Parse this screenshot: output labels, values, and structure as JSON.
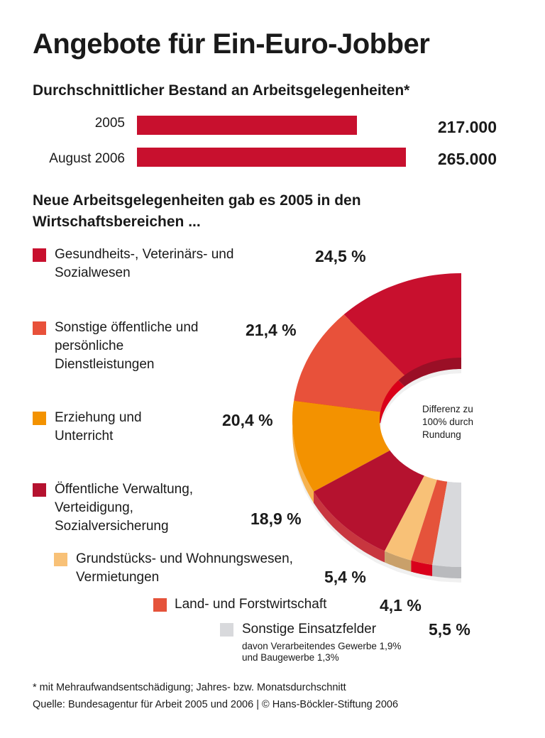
{
  "title": "Angebote für Ein-Euro-Jobber",
  "chart_data": [
    {
      "type": "bar",
      "orientation": "horizontal",
      "title": "Durchschnittlicher Bestand an Arbeitsgelegenheiten*",
      "categories": [
        "2005",
        "August 2006"
      ],
      "values": [
        217000,
        265000
      ],
      "value_labels": [
        "217.000",
        "265.000"
      ],
      "color": "#c8102e"
    },
    {
      "type": "pie",
      "style": "3d half-donut",
      "title": "Neue Arbeitsgelegenheiten gab es 2005 in den Wirtschaftsbereichen ...",
      "slices": [
        {
          "label": "Gesundheits-, Veterinärs- und Sozialwesen",
          "value": 24.5,
          "value_label": "24,5 %",
          "color": "#c8102e",
          "side": "#9a0f26"
        },
        {
          "label": "Sonstige öffentliche und persönliche Dienstleistungen",
          "value": 21.4,
          "value_label": "21,4 %",
          "color": "#e8513a",
          "side": "#d90019"
        },
        {
          "label": "Erziehung und Unterricht",
          "value": 20.4,
          "value_label": "20,4 %",
          "color": "#f39200",
          "side": "#f6b24f"
        },
        {
          "label": "Öffentliche Verwaltung, Verteidigung, Sozialversicherung",
          "value": 18.9,
          "value_label": "18,9 %",
          "color": "#b5122f",
          "side": "#c8363f"
        },
        {
          "label": "Grundstücks- und Wohnungswesen, Vermietungen",
          "value": 5.4,
          "value_label": "5,4 %",
          "color": "#f8c177",
          "side": "#c9a06a"
        },
        {
          "label": "Land- und Forstwirtschaft",
          "value": 4.1,
          "value_label": "4,1 %",
          "color": "#e5533b",
          "side": "#d9001b"
        },
        {
          "label": "Sonstige Einsatzfelder",
          "value": 5.5,
          "value_label": "5,5 %",
          "color": "#d8d9dc",
          "side": "#b9babd"
        }
      ],
      "sub_note": [
        "davon Verarbeitendes Gewerbe 1,9%",
        "und Baugewerbe 1,3%"
      ],
      "note": [
        "Differenz zu",
        "100% durch",
        "Rundung"
      ]
    }
  ],
  "footnote": "* mit Mehraufwandsentschädigung; Jahres- bzw. Monatsdurchschnitt",
  "source": "Quelle: Bundesagentur für Arbeit 2005 und 2006 | © Hans-Böckler-Stiftung 2006"
}
